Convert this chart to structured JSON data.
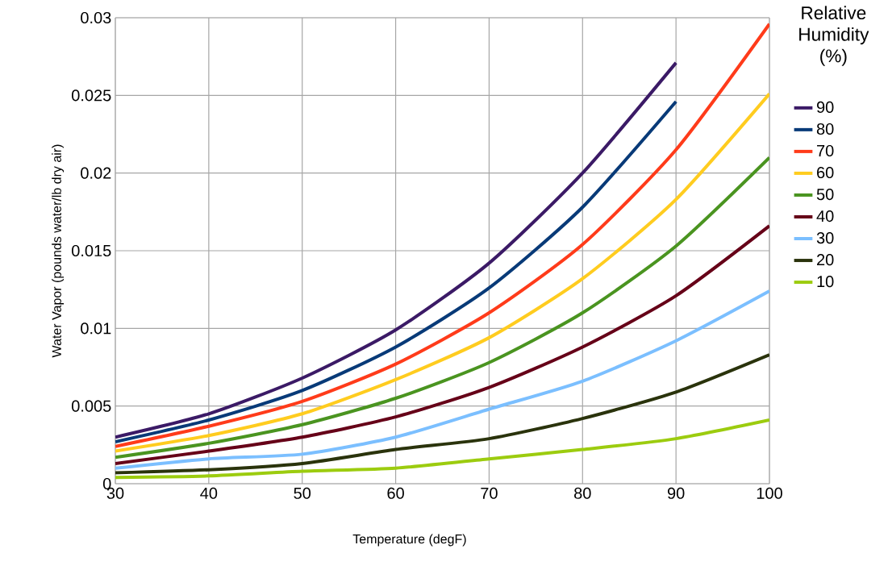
{
  "chart_data": {
    "type": "line",
    "xlabel": "Temperature (degF)",
    "ylabel": "Water Vapor (pounds water/lb dry air)",
    "legend_title": "Relative Humidity (%)",
    "xlim": [
      30,
      100
    ],
    "xticks": [
      30,
      40,
      50,
      60,
      70,
      80,
      90,
      100
    ],
    "ylim": [
      0,
      0.03
    ],
    "yticks": [
      0,
      0.005,
      0.01,
      0.015,
      0.02,
      0.025,
      0.03
    ],
    "grid": true,
    "legend": "right",
    "marker": "none",
    "line_style": "solid",
    "x": [
      30,
      40,
      50,
      60,
      70,
      80,
      90,
      100
    ],
    "series": [
      {
        "name": "90",
        "color": "#3b1a66",
        "values": [
          0.003,
          0.0045,
          0.0068,
          0.0099,
          0.0142,
          0.02,
          0.0271,
          null
        ]
      },
      {
        "name": "80",
        "color": "#083a78",
        "values": [
          0.0027,
          0.0041,
          0.006,
          0.0088,
          0.0126,
          0.0178,
          0.0246,
          null
        ]
      },
      {
        "name": "70",
        "color": "#ff3b1a",
        "values": [
          0.0024,
          0.0037,
          0.0053,
          0.0077,
          0.011,
          0.0154,
          0.0215,
          0.0296
        ]
      },
      {
        "name": "60",
        "color": "#ffcc1f",
        "values": [
          0.0021,
          0.0031,
          0.0045,
          0.0067,
          0.0094,
          0.0132,
          0.0183,
          0.0251
        ]
      },
      {
        "name": "50",
        "color": "#4a9420",
        "values": [
          0.0017,
          0.0026,
          0.0038,
          0.0055,
          0.0078,
          0.011,
          0.0153,
          0.021
        ]
      },
      {
        "name": "40",
        "color": "#660018",
        "values": [
          0.0013,
          0.0021,
          0.003,
          0.0043,
          0.0062,
          0.0088,
          0.0121,
          0.0166
        ]
      },
      {
        "name": "30",
        "color": "#7bbfff",
        "values": [
          0.001,
          0.0016,
          0.0019,
          0.003,
          0.0048,
          0.0066,
          0.0092,
          0.0124
        ]
      },
      {
        "name": "20",
        "color": "#2a330c",
        "values": [
          0.0007,
          0.0009,
          0.0013,
          0.0022,
          0.0029,
          0.0042,
          0.0059,
          0.0083
        ]
      },
      {
        "name": "10",
        "color": "#9ccc0f",
        "values": [
          0.0004,
          0.0005,
          0.0008,
          0.001,
          0.0016,
          0.0022,
          0.0029,
          0.0041
        ]
      }
    ]
  }
}
